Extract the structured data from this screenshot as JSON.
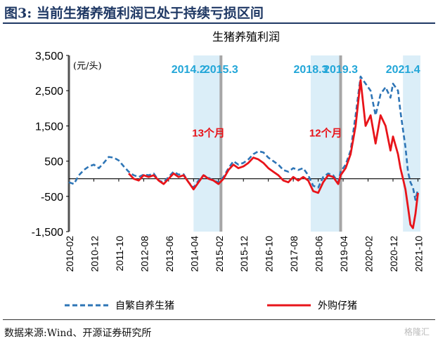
{
  "header": {
    "figure_title": "图3:  当前生猪养殖利润已处于持续亏损区间"
  },
  "footer": {
    "source": "数据来源:Wind、开源证券研究所",
    "watermark": "格隆汇"
  },
  "chart_data": {
    "type": "line",
    "title": "生猪养殖利润",
    "unit_label": "(元/头)",
    "ylim": [
      -1500,
      3500
    ],
    "yticks": [
      3500,
      2500,
      1500,
      500,
      -500,
      -1500
    ],
    "ytick_labels": [
      "3,500",
      "2,500",
      "1,500",
      "500",
      "-500",
      "-1,500"
    ],
    "xticks": [
      "2010-02",
      "2010-12",
      "2011-10",
      "2012-08",
      "2013-06",
      "2014-04",
      "2015-02",
      "2015-12",
      "2016-10",
      "2017-08",
      "2018-06",
      "2019-04",
      "2020-02",
      "2020-12",
      "2021-10"
    ],
    "legend": [
      "自繁自养生猪",
      "外购仔猪"
    ],
    "legend_position": "bottom",
    "colors": {
      "series1": "#2e75b6",
      "series2": "#e8141a",
      "shade": "#dbeef8",
      "marker": "#a6a6a6",
      "annot_blue": "#22a6d8",
      "annot_red": "#e8141a",
      "axis": "#000000"
    },
    "shaded_periods": [
      [
        "2014-04",
        "2015-03"
      ],
      [
        "2018-03",
        "2019-03"
      ],
      [
        "2021-04",
        "2021-11"
      ]
    ],
    "vertical_markers": [
      "2010-02",
      "2015-03",
      "2019-03"
    ],
    "annotations": [
      {
        "text": "2014.2",
        "x": "2014-02",
        "y": 3000,
        "color": "blue"
      },
      {
        "text": "2015.3",
        "x": "2015-03",
        "y": 3000,
        "color": "blue"
      },
      {
        "text": "2018.3",
        "x": "2018-03",
        "y": 3000,
        "color": "blue"
      },
      {
        "text": "2019.3",
        "x": "2019-03",
        "y": 3000,
        "color": "blue"
      },
      {
        "text": "2021.4",
        "x": "2021-04",
        "y": 3000,
        "color": "blue"
      },
      {
        "text": "13个月",
        "x": "2014-10",
        "y": 1200,
        "color": "red"
      },
      {
        "text": "12个月",
        "x": "2018-09",
        "y": 1200,
        "color": "red"
      }
    ],
    "series": [
      {
        "name": "自繁自养生猪",
        "style": "dashed",
        "points": [
          [
            "2010-02",
            -100
          ],
          [
            "2010-04",
            -150
          ],
          [
            "2010-06",
            100
          ],
          [
            "2010-08",
            250
          ],
          [
            "2010-10",
            350
          ],
          [
            "2010-12",
            400
          ],
          [
            "2011-02",
            300
          ],
          [
            "2011-04",
            450
          ],
          [
            "2011-06",
            620
          ],
          [
            "2011-08",
            600
          ],
          [
            "2011-10",
            520
          ],
          [
            "2011-12",
            350
          ],
          [
            "2012-02",
            200
          ],
          [
            "2012-04",
            100
          ],
          [
            "2012-06",
            50
          ],
          [
            "2012-08",
            120
          ],
          [
            "2012-10",
            100
          ],
          [
            "2012-12",
            150
          ],
          [
            "2013-02",
            -50
          ],
          [
            "2013-04",
            -100
          ],
          [
            "2013-06",
            50
          ],
          [
            "2013-08",
            200
          ],
          [
            "2013-10",
            120
          ],
          [
            "2013-12",
            130
          ],
          [
            "2014-02",
            -100
          ],
          [
            "2014-04",
            -250
          ],
          [
            "2014-06",
            -50
          ],
          [
            "2014-08",
            100
          ],
          [
            "2014-10",
            30
          ],
          [
            "2014-12",
            -50
          ],
          [
            "2015-02",
            -100
          ],
          [
            "2015-04",
            50
          ],
          [
            "2015-06",
            300
          ],
          [
            "2015-08",
            500
          ],
          [
            "2015-10",
            400
          ],
          [
            "2015-12",
            450
          ],
          [
            "2016-02",
            550
          ],
          [
            "2016-04",
            700
          ],
          [
            "2016-06",
            780
          ],
          [
            "2016-08",
            750
          ],
          [
            "2016-10",
            600
          ],
          [
            "2016-12",
            500
          ],
          [
            "2017-02",
            400
          ],
          [
            "2017-04",
            250
          ],
          [
            "2017-06",
            200
          ],
          [
            "2017-08",
            300
          ],
          [
            "2017-10",
            250
          ],
          [
            "2017-12",
            300
          ],
          [
            "2018-02",
            100
          ],
          [
            "2018-04",
            -200
          ],
          [
            "2018-06",
            -250
          ],
          [
            "2018-08",
            50
          ],
          [
            "2018-10",
            150
          ],
          [
            "2018-12",
            100
          ],
          [
            "2019-02",
            -100
          ],
          [
            "2019-03",
            200
          ],
          [
            "2019-05",
            400
          ],
          [
            "2019-07",
            800
          ],
          [
            "2019-09",
            1800
          ],
          [
            "2019-11",
            2900
          ],
          [
            "2020-01",
            2700
          ],
          [
            "2020-03",
            2500
          ],
          [
            "2020-05",
            1800
          ],
          [
            "2020-07",
            2400
          ],
          [
            "2020-09",
            2600
          ],
          [
            "2020-11",
            2300
          ],
          [
            "2020-12",
            2700
          ],
          [
            "2021-02",
            2500
          ],
          [
            "2021-03",
            1900
          ],
          [
            "2021-05",
            900
          ],
          [
            "2021-06",
            200
          ],
          [
            "2021-07",
            -100
          ],
          [
            "2021-08",
            -250
          ],
          [
            "2021-09",
            -600
          ],
          [
            "2021-10",
            -300
          ]
        ]
      },
      {
        "name": "外购仔猪",
        "style": "solid",
        "points": [
          [
            "2012-02",
            150
          ],
          [
            "2012-04",
            0
          ],
          [
            "2012-06",
            -50
          ],
          [
            "2012-08",
            100
          ],
          [
            "2012-10",
            50
          ],
          [
            "2012-12",
            100
          ],
          [
            "2013-02",
            -50
          ],
          [
            "2013-04",
            -150
          ],
          [
            "2013-06",
            0
          ],
          [
            "2013-08",
            150
          ],
          [
            "2013-10",
            50
          ],
          [
            "2013-12",
            100
          ],
          [
            "2014-02",
            -100
          ],
          [
            "2014-04",
            -300
          ],
          [
            "2014-06",
            -100
          ],
          [
            "2014-08",
            100
          ],
          [
            "2014-10",
            0
          ],
          [
            "2014-12",
            -50
          ],
          [
            "2015-02",
            -150
          ],
          [
            "2015-04",
            0
          ],
          [
            "2015-06",
            250
          ],
          [
            "2015-08",
            400
          ],
          [
            "2015-10",
            300
          ],
          [
            "2015-12",
            350
          ],
          [
            "2016-02",
            450
          ],
          [
            "2016-04",
            600
          ],
          [
            "2016-06",
            550
          ],
          [
            "2016-08",
            450
          ],
          [
            "2016-10",
            300
          ],
          [
            "2016-12",
            200
          ],
          [
            "2017-02",
            100
          ],
          [
            "2017-04",
            -50
          ],
          [
            "2017-06",
            -100
          ],
          [
            "2017-08",
            50
          ],
          [
            "2017-10",
            -50
          ],
          [
            "2017-12",
            50
          ],
          [
            "2018-02",
            -50
          ],
          [
            "2018-04",
            -350
          ],
          [
            "2018-06",
            -400
          ],
          [
            "2018-08",
            -100
          ],
          [
            "2018-10",
            100
          ],
          [
            "2018-12",
            50
          ],
          [
            "2019-02",
            -150
          ],
          [
            "2019-03",
            100
          ],
          [
            "2019-05",
            300
          ],
          [
            "2019-07",
            700
          ],
          [
            "2019-09",
            1500
          ],
          [
            "2019-11",
            2800
          ],
          [
            "2020-01",
            1500
          ],
          [
            "2020-03",
            1800
          ],
          [
            "2020-05",
            1000
          ],
          [
            "2020-07",
            1800
          ],
          [
            "2020-09",
            1500
          ],
          [
            "2020-11",
            800
          ],
          [
            "2020-12",
            1200
          ],
          [
            "2021-02",
            700
          ],
          [
            "2021-03",
            300
          ],
          [
            "2021-04",
            0
          ],
          [
            "2021-05",
            -300
          ],
          [
            "2021-06",
            -800
          ],
          [
            "2021-07",
            -1300
          ],
          [
            "2021-08",
            -1400
          ],
          [
            "2021-09",
            -1000
          ],
          [
            "2021-10",
            -400
          ]
        ]
      }
    ]
  }
}
